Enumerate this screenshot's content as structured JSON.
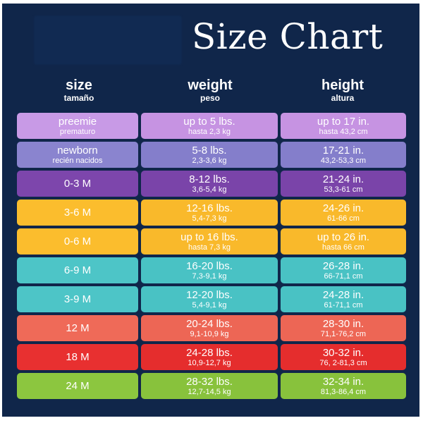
{
  "title": "Size Chart",
  "headers": {
    "size": {
      "en": "size",
      "es": "tamaño"
    },
    "weight": {
      "en": "weight",
      "es": "peso"
    },
    "height": {
      "en": "height",
      "es": "altura"
    }
  },
  "rows": [
    {
      "size": "preemie",
      "size_es": "prematuro",
      "weight": "up to 5 lbs.",
      "weight_sub": "hasta 2,3 kg",
      "height": "up to 17 in.",
      "height_sub": "hasta 43,2 cm",
      "color": "#c89ae6",
      "color_alt": "#c693e2"
    },
    {
      "size": "newborn",
      "size_es": "recién nacidos",
      "weight": "5-8 lbs.",
      "weight_sub": "2,3-3,6 kg",
      "height": "17-21 in.",
      "height_sub": "43,2-53,3 cm",
      "color": "#8a84cf",
      "color_alt": "#847ecb"
    },
    {
      "size": "0-3 M",
      "size_es": "",
      "weight": "8-12 lbs.",
      "weight_sub": "3,6-5,4 kg",
      "height": "21-24 in.",
      "height_sub": "53,3-61 cm",
      "color": "#7d46ac",
      "color_alt": "#7a44a9"
    },
    {
      "size": "3-6 M",
      "size_es": "",
      "weight": "12-16 lbs.",
      "weight_sub": "5,4-7,3 kg",
      "height": "24-26 in.",
      "height_sub": "61-66 cm",
      "color": "#fbbd2d",
      "color_alt": "#f9b92b"
    },
    {
      "size": "0-6 M",
      "size_es": "",
      "weight": "up to 16 lbs.",
      "weight_sub": "hasta 7,3 kg",
      "height": "up to 26 in.",
      "height_sub": "hasta 66 cm",
      "color": "#fbbd2d",
      "color_alt": "#f9b92b"
    },
    {
      "size": "6-9 M",
      "size_es": "",
      "weight": "16-20 lbs.",
      "weight_sub": "7,3-9,1 kg",
      "height": "26-28 in.",
      "height_sub": "66-71,1 cm",
      "color": "#4dc5c7",
      "color_alt": "#49c2c4"
    },
    {
      "size": "3-9 M",
      "size_es": "",
      "weight": "12-20 lbs.",
      "weight_sub": "5,4-9,1 kg",
      "height": "24-28 in.",
      "height_sub": "61-71,1 cm",
      "color": "#4dc5c7",
      "color_alt": "#49c2c4"
    },
    {
      "size": "12 M",
      "size_es": "",
      "weight": "20-24 lbs.",
      "weight_sub": "9,1-10,9 kg",
      "height": "28-30 in.",
      "height_sub": "71,1-76,2 cm",
      "color": "#ef6a58",
      "color_alt": "#ed6655"
    },
    {
      "size": "18 M",
      "size_es": "",
      "weight": "24-28 lbs.",
      "weight_sub": "10,9-12,7 kg",
      "height": "30-32 in.",
      "height_sub": "76, 2-81,3 cm",
      "color": "#e83030",
      "color_alt": "#e52d2d"
    },
    {
      "size": "24 M",
      "size_es": "",
      "weight": "28-32 lbs.",
      "weight_sub": "12,7-14,5 kg",
      "height": "32-34 in.",
      "height_sub": "81,3-86,4 cm",
      "color": "#8cc63f",
      "color_alt": "#88c23c"
    }
  ]
}
